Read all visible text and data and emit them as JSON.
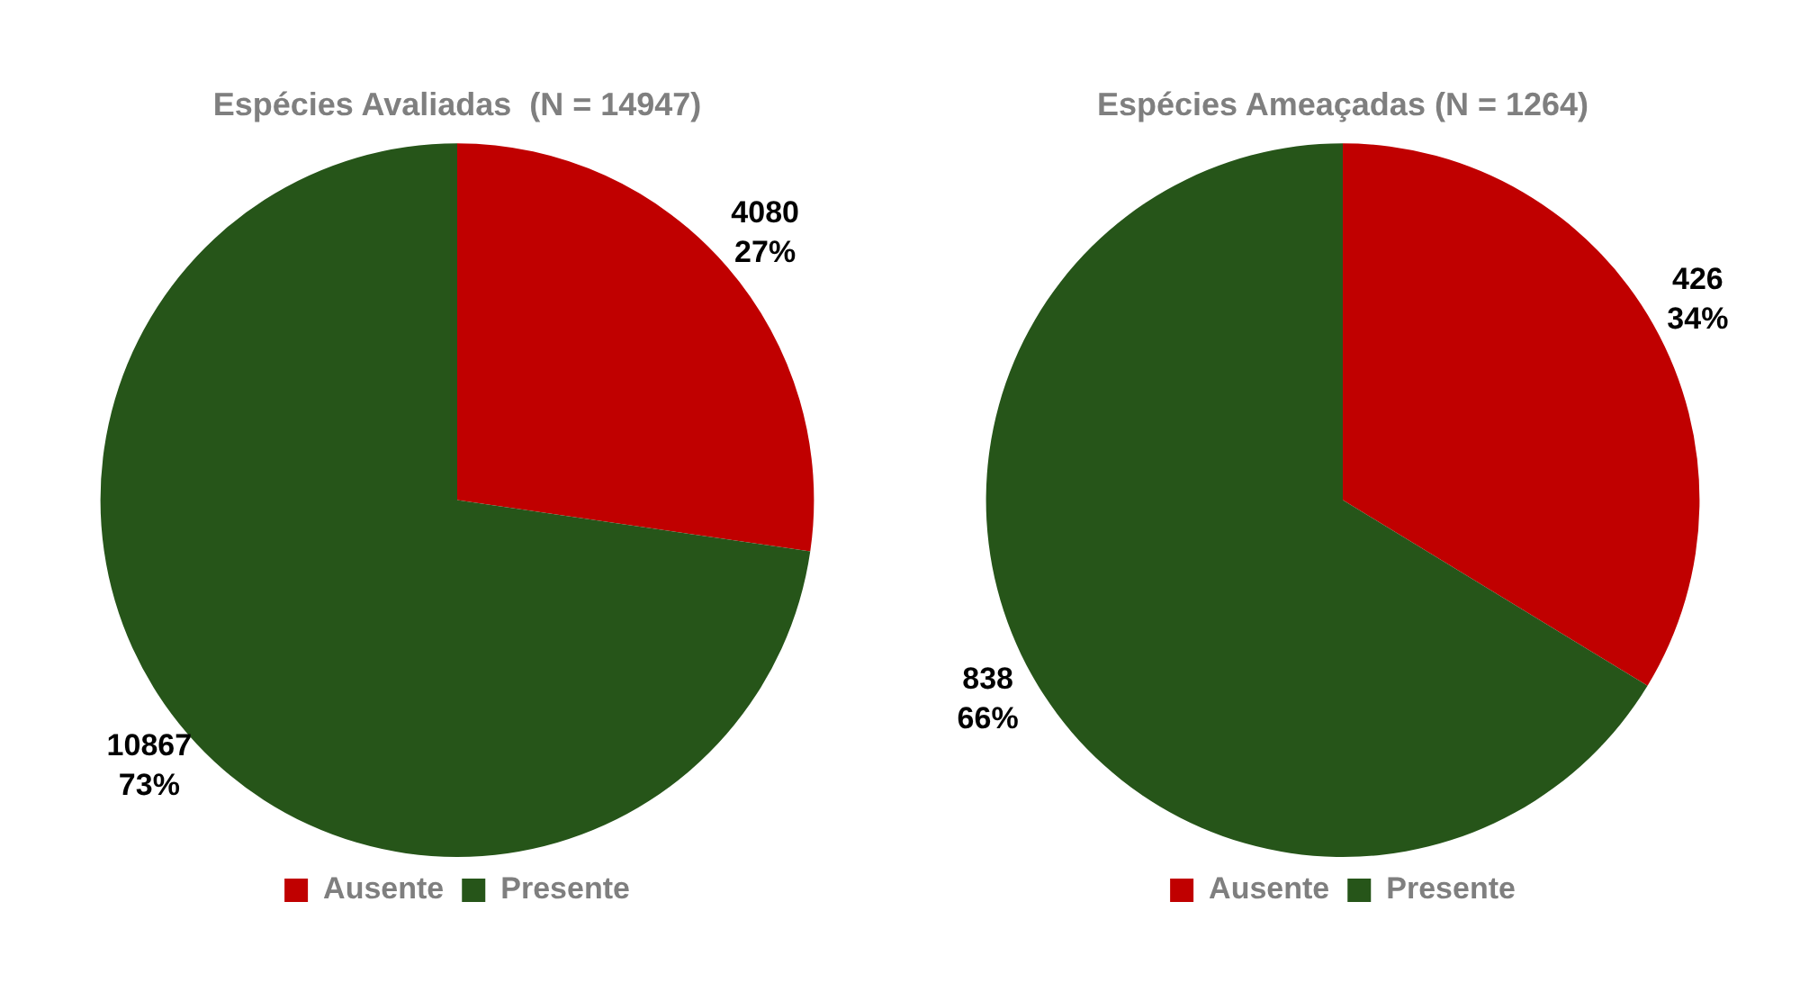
{
  "chart_data": [
    {
      "type": "pie",
      "title": "Espécies Avaliadas  (N = 14947)",
      "categories": [
        "Ausente",
        "Presente"
      ],
      "values": [
        4080,
        10867
      ],
      "colors": [
        "#c00000",
        "#265519"
      ],
      "value_labels": [
        "4080\n27%",
        "10867\n73%"
      ],
      "legend": "bottom"
    },
    {
      "type": "pie",
      "title": "Espécies Ameaçadas (N = 1264)",
      "categories": [
        "Ausente",
        "Presente"
      ],
      "values": [
        426,
        838
      ],
      "colors": [
        "#c00000",
        "#265519"
      ],
      "value_labels": [
        "426\n34%",
        "838\n66%"
      ],
      "legend": "bottom"
    }
  ]
}
